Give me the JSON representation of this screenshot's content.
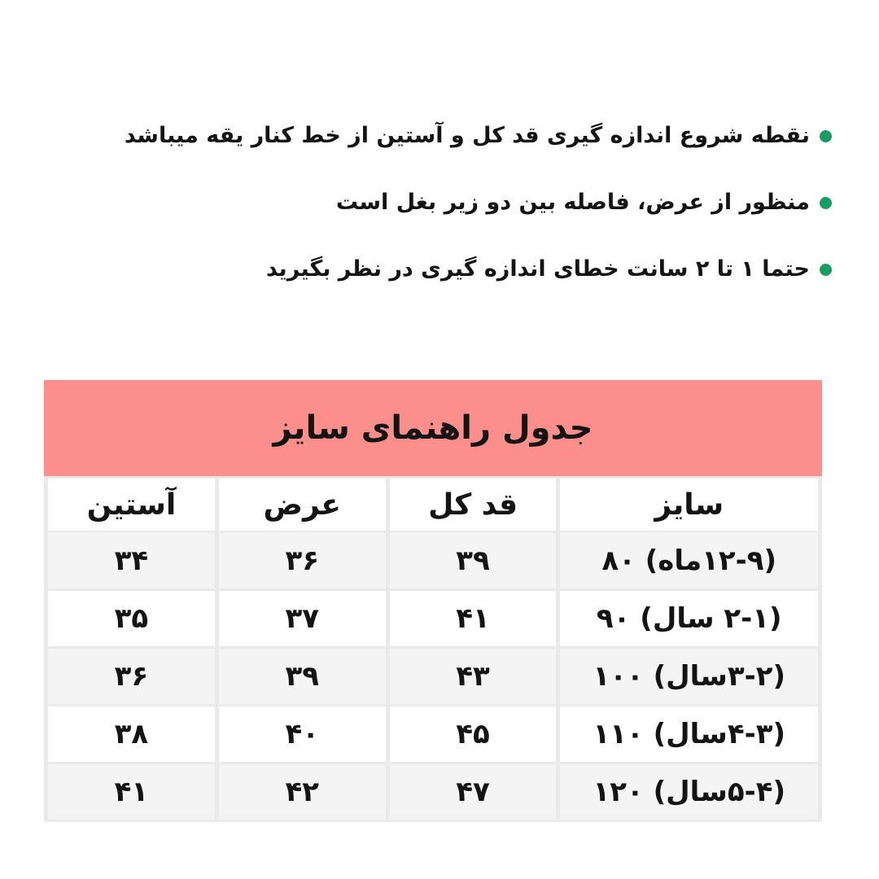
{
  "colors": {
    "header_bg": "#fc8f8c",
    "bullet_green": "#179c62",
    "stripe_row": "#f4f4f4",
    "grid_line": "#eaeaea"
  },
  "notes": {
    "items": [
      "نقطه شروع اندازه گیری قد کل و آستین از خط کنار یقه میباشد",
      "منظور از عرض، فاصله بین دو زیر بغل است",
      "حتما ۱ تا ۲ سانت خطای اندازه گیری در نظر بگیرید"
    ]
  },
  "size_table": {
    "title": "جدول راهنمای سایز",
    "columns": [
      "سایز",
      "قد کل",
      "عرض",
      "آستین"
    ],
    "rows": [
      {
        "size": "(۱۲-۹ماه) ۸۰",
        "total_length": "۳۹",
        "width": "۳۶",
        "sleeve": "۳۴"
      },
      {
        "size": "(۲-۱ سال) ۹۰",
        "total_length": "۴۱",
        "width": "۳۷",
        "sleeve": "۳۵"
      },
      {
        "size": "(۳-۲سال) ۱۰۰",
        "total_length": "۴۳",
        "width": "۳۹",
        "sleeve": "۳۶"
      },
      {
        "size": "(۴-۳سال) ۱۱۰",
        "total_length": "۴۵",
        "width": "۴۰",
        "sleeve": "۳۸"
      },
      {
        "size": "(۵-۴سال) ۱۲۰",
        "total_length": "۴۷",
        "width": "۴۲",
        "sleeve": "۴۱"
      }
    ]
  }
}
